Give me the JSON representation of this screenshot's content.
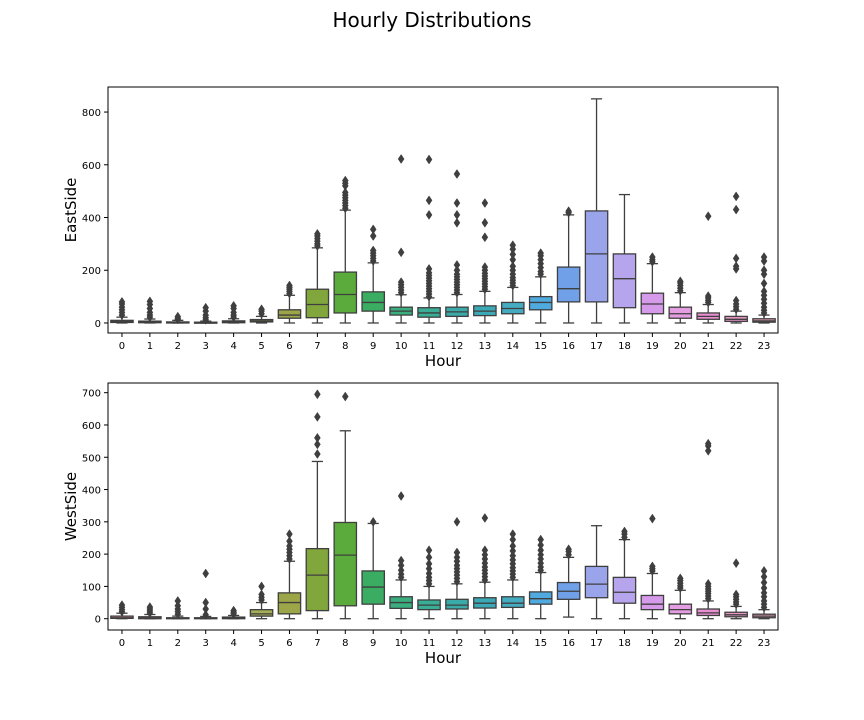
{
  "figure": {
    "title": "Hourly Distributions"
  },
  "chart_data": [
    {
      "type": "box",
      "panel": "top",
      "xlabel": "Hour",
      "ylabel": "EastSide",
      "categories": [
        "0",
        "1",
        "2",
        "3",
        "4",
        "5",
        "6",
        "7",
        "8",
        "9",
        "10",
        "11",
        "12",
        "13",
        "14",
        "15",
        "16",
        "17",
        "18",
        "19",
        "20",
        "21",
        "22",
        "23"
      ],
      "ylim": [
        -38,
        895
      ],
      "yticks": [
        0,
        200,
        400,
        600,
        800
      ],
      "boxes": [
        {
          "q1": 2,
          "med": 5,
          "q3": 10,
          "wlo": 0,
          "whi": 22,
          "outliers": [
            30,
            40,
            50,
            60,
            72,
            80
          ]
        },
        {
          "q1": 1,
          "med": 3,
          "q3": 7,
          "wlo": 0,
          "whi": 15,
          "outliers": [
            22,
            30,
            40,
            55,
            70,
            82
          ]
        },
        {
          "q1": 0,
          "med": 2,
          "q3": 4,
          "wlo": 0,
          "whi": 10,
          "outliers": [
            14,
            18,
            24
          ]
        },
        {
          "q1": 0,
          "med": 1,
          "q3": 3,
          "wlo": 0,
          "whi": 7,
          "outliers": [
            12,
            20,
            30,
            45,
            58
          ]
        },
        {
          "q1": 1,
          "med": 3,
          "q3": 8,
          "wlo": 0,
          "whi": 16,
          "outliers": [
            22,
            30,
            40,
            55,
            65
          ]
        },
        {
          "q1": 4,
          "med": 8,
          "q3": 13,
          "wlo": 0,
          "whi": 25,
          "outliers": [
            35,
            45,
            52
          ]
        },
        {
          "q1": 18,
          "med": 30,
          "q3": 50,
          "wlo": 0,
          "whi": 105,
          "outliers": [
            112,
            120,
            128,
            135,
            142
          ]
        },
        {
          "q1": 20,
          "med": 70,
          "q3": 128,
          "wlo": 0,
          "whi": 285,
          "outliers": [
            292,
            300,
            310,
            320,
            330,
            338
          ]
        },
        {
          "q1": 38,
          "med": 108,
          "q3": 193,
          "wlo": 0,
          "whi": 428,
          "outliers": [
            435,
            445,
            455,
            465,
            475,
            485,
            495,
            520,
            530,
            540
          ]
        },
        {
          "q1": 45,
          "med": 78,
          "q3": 118,
          "wlo": 0,
          "whi": 228,
          "outliers": [
            235,
            245,
            255,
            265,
            275,
            330,
            355
          ]
        },
        {
          "q1": 30,
          "med": 45,
          "q3": 60,
          "wlo": 0,
          "whi": 107,
          "outliers": [
            115,
            125,
            135,
            145,
            155,
            268,
            622
          ]
        },
        {
          "q1": 22,
          "med": 38,
          "q3": 58,
          "wlo": 0,
          "whi": 95,
          "outliers": [
            100,
            110,
            120,
            130,
            140,
            150,
            160,
            170,
            180,
            190,
            205,
            410,
            465,
            620
          ]
        },
        {
          "q1": 25,
          "med": 42,
          "q3": 60,
          "wlo": 0,
          "whi": 108,
          "outliers": [
            115,
            125,
            135,
            145,
            155,
            165,
            175,
            185,
            200,
            220,
            380,
            410,
            455,
            565
          ]
        },
        {
          "q1": 28,
          "med": 45,
          "q3": 65,
          "wlo": 0,
          "whi": 120,
          "outliers": [
            128,
            138,
            148,
            158,
            168,
            178,
            188,
            200,
            212,
            325,
            380,
            455
          ]
        },
        {
          "q1": 35,
          "med": 55,
          "q3": 78,
          "wlo": 0,
          "whi": 135,
          "outliers": [
            142,
            152,
            162,
            172,
            185,
            200,
            215,
            240,
            260,
            280,
            295
          ]
        },
        {
          "q1": 50,
          "med": 78,
          "q3": 100,
          "wlo": 0,
          "whi": 175,
          "outliers": [
            185,
            195,
            210,
            225,
            240,
            255,
            265
          ]
        },
        {
          "q1": 80,
          "med": 130,
          "q3": 212,
          "wlo": 0,
          "whi": 410,
          "outliers": [
            418,
            424
          ]
        },
        {
          "q1": 80,
          "med": 262,
          "q3": 425,
          "wlo": 0,
          "whi": 850,
          "outliers": []
        },
        {
          "q1": 58,
          "med": 168,
          "q3": 262,
          "wlo": 0,
          "whi": 487,
          "outliers": []
        },
        {
          "q1": 35,
          "med": 72,
          "q3": 113,
          "wlo": 0,
          "whi": 225,
          "outliers": [
            232,
            240,
            250
          ]
        },
        {
          "q1": 18,
          "med": 35,
          "q3": 60,
          "wlo": 0,
          "whi": 115,
          "outliers": [
            122,
            132,
            142,
            152,
            158
          ]
        },
        {
          "q1": 14,
          "med": 25,
          "q3": 38,
          "wlo": 0,
          "whi": 70,
          "outliers": [
            78,
            86,
            95,
            102,
            405
          ]
        },
        {
          "q1": 6,
          "med": 14,
          "q3": 25,
          "wlo": 0,
          "whi": 45,
          "outliers": [
            52,
            62,
            72,
            85,
            205,
            215,
            245,
            430,
            480
          ]
        },
        {
          "q1": 3,
          "med": 8,
          "q3": 16,
          "wlo": 0,
          "whi": 30,
          "outliers": [
            38,
            48,
            60,
            75,
            90,
            105,
            120,
            150,
            185,
            200,
            235,
            250
          ]
        }
      ]
    },
    {
      "type": "box",
      "panel": "bottom",
      "xlabel": "Hour",
      "ylabel": "WestSide",
      "categories": [
        "0",
        "1",
        "2",
        "3",
        "4",
        "5",
        "6",
        "7",
        "8",
        "9",
        "10",
        "11",
        "12",
        "13",
        "14",
        "15",
        "16",
        "17",
        "18",
        "19",
        "20",
        "21",
        "22",
        "23"
      ],
      "ylim": [
        -35,
        730
      ],
      "yticks": [
        0,
        100,
        200,
        300,
        400,
        500,
        600,
        700
      ],
      "boxes": [
        {
          "q1": 1,
          "med": 3,
          "q3": 8,
          "wlo": 0,
          "whi": 17,
          "outliers": [
            22,
            28,
            35,
            42
          ]
        },
        {
          "q1": 0,
          "med": 2,
          "q3": 6,
          "wlo": 0,
          "whi": 13,
          "outliers": [
            18,
            24,
            30,
            36
          ]
        },
        {
          "q1": 0,
          "med": 1,
          "q3": 3,
          "wlo": 0,
          "whi": 8,
          "outliers": [
            14,
            22,
            30,
            40,
            55
          ]
        },
        {
          "q1": 0,
          "med": 1,
          "q3": 3,
          "wlo": 0,
          "whi": 7,
          "outliers": [
            12,
            30,
            50,
            140
          ]
        },
        {
          "q1": 0,
          "med": 2,
          "q3": 5,
          "wlo": 0,
          "whi": 10,
          "outliers": [
            15,
            20,
            25
          ]
        },
        {
          "q1": 8,
          "med": 15,
          "q3": 28,
          "wlo": 0,
          "whi": 50,
          "outliers": [
            58,
            66,
            75,
            100
          ]
        },
        {
          "q1": 15,
          "med": 50,
          "q3": 80,
          "wlo": 0,
          "whi": 178,
          "outliers": [
            185,
            195,
            205,
            215,
            225,
            240,
            262
          ]
        },
        {
          "q1": 25,
          "med": 135,
          "q3": 217,
          "wlo": 0,
          "whi": 487,
          "outliers": [
            510,
            540,
            560,
            625,
            695
          ]
        },
        {
          "q1": 40,
          "med": 197,
          "q3": 298,
          "wlo": 0,
          "whi": 582,
          "outliers": [
            688
          ]
        },
        {
          "q1": 45,
          "med": 98,
          "q3": 148,
          "wlo": 0,
          "whi": 295,
          "outliers": [
            300
          ]
        },
        {
          "q1": 32,
          "med": 50,
          "q3": 68,
          "wlo": 0,
          "whi": 120,
          "outliers": [
            128,
            138,
            150,
            165,
            180,
            380
          ]
        },
        {
          "q1": 28,
          "med": 42,
          "q3": 58,
          "wlo": 0,
          "whi": 100,
          "outliers": [
            108,
            118,
            128,
            140,
            155,
            170,
            190,
            212
          ]
        },
        {
          "q1": 30,
          "med": 42,
          "q3": 60,
          "wlo": 0,
          "whi": 108,
          "outliers": [
            115,
            125,
            135,
            145,
            155,
            165,
            178,
            190,
            205,
            300
          ]
        },
        {
          "q1": 33,
          "med": 48,
          "q3": 65,
          "wlo": 0,
          "whi": 113,
          "outliers": [
            120,
            130,
            140,
            150,
            160,
            172,
            185,
            198,
            212,
            312
          ]
        },
        {
          "q1": 35,
          "med": 48,
          "q3": 68,
          "wlo": 0,
          "whi": 120,
          "outliers": [
            128,
            138,
            148,
            158,
            170,
            182,
            195,
            210,
            225,
            245,
            262
          ]
        },
        {
          "q1": 45,
          "med": 62,
          "q3": 83,
          "wlo": 0,
          "whi": 143,
          "outliers": [
            150,
            160,
            172,
            185,
            198,
            212,
            228,
            245
          ]
        },
        {
          "q1": 60,
          "med": 85,
          "q3": 112,
          "wlo": 5,
          "whi": 190,
          "outliers": [
            198,
            208,
            215
          ]
        },
        {
          "q1": 65,
          "med": 107,
          "q3": 162,
          "wlo": 0,
          "whi": 288,
          "outliers": []
        },
        {
          "q1": 48,
          "med": 82,
          "q3": 128,
          "wlo": 0,
          "whi": 245,
          "outliers": [
            252,
            262,
            270
          ]
        },
        {
          "q1": 28,
          "med": 45,
          "q3": 72,
          "wlo": 0,
          "whi": 140,
          "outliers": [
            148,
            155,
            162,
            310
          ]
        },
        {
          "q1": 15,
          "med": 28,
          "q3": 45,
          "wlo": 0,
          "whi": 88,
          "outliers": [
            95,
            102,
            110,
            118,
            125
          ]
        },
        {
          "q1": 10,
          "med": 18,
          "q3": 30,
          "wlo": 0,
          "whi": 55,
          "outliers": [
            62,
            70,
            78,
            85,
            92,
            100,
            108,
            520,
            535,
            542
          ]
        },
        {
          "q1": 6,
          "med": 12,
          "q3": 20,
          "wlo": 0,
          "whi": 38,
          "outliers": [
            45,
            52,
            60,
            68,
            75,
            172
          ]
        },
        {
          "q1": 3,
          "med": 8,
          "q3": 14,
          "wlo": 0,
          "whi": 28,
          "outliers": [
            35,
            45,
            55,
            68,
            80,
            95,
            112,
            130,
            148
          ]
        }
      ]
    }
  ],
  "colors": [
    "#ea96a3",
    "#e5988d",
    "#d99e6a",
    "#c8a45f",
    "#b4a95f",
    "#a4ae56",
    "#9ca548",
    "#80a63c",
    "#5bab3c",
    "#3aad62",
    "#3bae80",
    "#3aad96",
    "#3babaa",
    "#3caab6",
    "#44abc1",
    "#4faae0",
    "#6fa0e8",
    "#9aa4eb",
    "#b6a4ec",
    "#d69aea",
    "#e49de0",
    "#ea8fd2",
    "#e796c8",
    "#ea9fbb"
  ]
}
